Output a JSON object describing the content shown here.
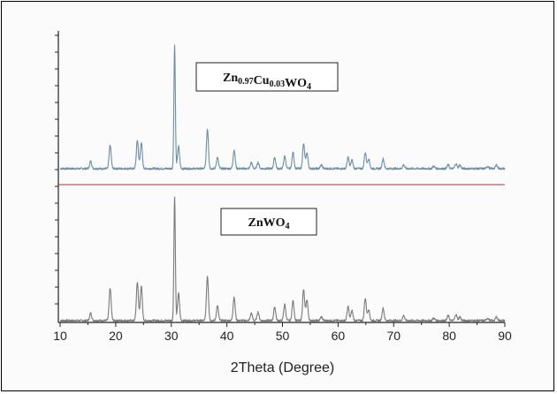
{
  "chart_data": {
    "type": "line",
    "xlabel": "2Theta (Degree)",
    "ylabel": "",
    "xlim": [
      10,
      90
    ],
    "x_ticks": [
      10,
      20,
      30,
      40,
      50,
      60,
      70,
      80,
      90
    ],
    "grid": false,
    "legend_position": "inline labels in each panel",
    "separator_color": "#a03a3a",
    "panels": [
      {
        "label_parts": [
          {
            "text": "Zn",
            "sub": false
          },
          {
            "text": "0.97",
            "sub": true
          },
          {
            "text": "Cu",
            "sub": false
          },
          {
            "text": "0.03",
            "sub": true
          },
          {
            "text": "WO",
            "sub": false
          },
          {
            "text": "4",
            "sub": true
          }
        ],
        "color": "#6d8ea3",
        "peaks": [
          {
            "x": 15.5,
            "y": 6
          },
          {
            "x": 19.0,
            "y": 19
          },
          {
            "x": 23.9,
            "y": 23
          },
          {
            "x": 24.6,
            "y": 21
          },
          {
            "x": 30.6,
            "y": 100
          },
          {
            "x": 31.3,
            "y": 18
          },
          {
            "x": 36.5,
            "y": 32
          },
          {
            "x": 38.3,
            "y": 9
          },
          {
            "x": 41.3,
            "y": 15
          },
          {
            "x": 44.4,
            "y": 5
          },
          {
            "x": 45.6,
            "y": 5
          },
          {
            "x": 48.6,
            "y": 9
          },
          {
            "x": 50.4,
            "y": 10
          },
          {
            "x": 51.9,
            "y": 13
          },
          {
            "x": 53.8,
            "y": 20
          },
          {
            "x": 54.4,
            "y": 13
          },
          {
            "x": 57.0,
            "y": 3
          },
          {
            "x": 61.8,
            "y": 9
          },
          {
            "x": 62.5,
            "y": 7
          },
          {
            "x": 64.9,
            "y": 13
          },
          {
            "x": 65.5,
            "y": 8
          },
          {
            "x": 68.1,
            "y": 8
          },
          {
            "x": 71.8,
            "y": 3
          },
          {
            "x": 77.2,
            "y": 2
          },
          {
            "x": 79.8,
            "y": 3
          },
          {
            "x": 81.2,
            "y": 4
          },
          {
            "x": 81.9,
            "y": 3
          },
          {
            "x": 86.9,
            "y": 2
          },
          {
            "x": 88.5,
            "y": 3
          }
        ]
      },
      {
        "label_parts": [
          {
            "text": "ZnWO",
            "sub": false
          },
          {
            "text": "4",
            "sub": true
          }
        ],
        "color": "#7a7a7a",
        "peaks": [
          {
            "x": 15.5,
            "y": 6
          },
          {
            "x": 19.0,
            "y": 26
          },
          {
            "x": 23.9,
            "y": 31
          },
          {
            "x": 24.6,
            "y": 28
          },
          {
            "x": 30.6,
            "y": 100
          },
          {
            "x": 31.3,
            "y": 22
          },
          {
            "x": 36.5,
            "y": 36
          },
          {
            "x": 38.3,
            "y": 12
          },
          {
            "x": 41.3,
            "y": 19
          },
          {
            "x": 44.4,
            "y": 6
          },
          {
            "x": 45.6,
            "y": 7
          },
          {
            "x": 48.6,
            "y": 11
          },
          {
            "x": 50.4,
            "y": 13
          },
          {
            "x": 51.9,
            "y": 16
          },
          {
            "x": 53.8,
            "y": 25
          },
          {
            "x": 54.4,
            "y": 17
          },
          {
            "x": 57.0,
            "y": 3
          },
          {
            "x": 61.8,
            "y": 11
          },
          {
            "x": 62.5,
            "y": 8
          },
          {
            "x": 64.9,
            "y": 18
          },
          {
            "x": 65.5,
            "y": 9
          },
          {
            "x": 68.1,
            "y": 10
          },
          {
            "x": 71.8,
            "y": 4
          },
          {
            "x": 77.2,
            "y": 2
          },
          {
            "x": 79.8,
            "y": 4
          },
          {
            "x": 81.2,
            "y": 5
          },
          {
            "x": 81.9,
            "y": 3
          },
          {
            "x": 86.9,
            "y": 2
          },
          {
            "x": 88.5,
            "y": 3
          }
        ]
      }
    ]
  }
}
